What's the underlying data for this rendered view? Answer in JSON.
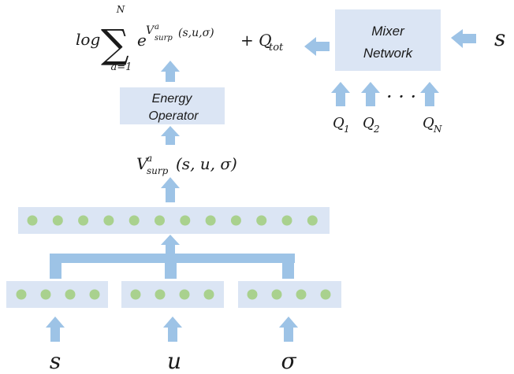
{
  "formula": {
    "log": "log",
    "sum_symbol": "∑",
    "sum_upper": "N",
    "sum_lower": "a=1",
    "exp_base": "e",
    "exp_v": "V",
    "exp_sup": "a",
    "exp_sub": "surp",
    "exp_args": "(s,u,σ)",
    "plus_q": "+ Q",
    "q_sub": "tot"
  },
  "mixer": {
    "line1": "Mixer",
    "line2": "Network"
  },
  "mixer_input": "s",
  "q_inputs": [
    {
      "main": "Q",
      "sub": "1"
    },
    {
      "main": "Q",
      "sub": "2"
    },
    {
      "main": "Q",
      "sub": "N"
    }
  ],
  "q_ellipsis": "· · ·",
  "energy": {
    "line1": "Energy",
    "line2": "Operator"
  },
  "vsurp": {
    "main": "V",
    "sup": "a",
    "sub": "surp",
    "args": "(s, u, σ)"
  },
  "hidden_layer": {
    "units": 12
  },
  "input_groups": [
    {
      "symbol": "s",
      "units": 4
    },
    {
      "symbol": "u",
      "units": 4
    },
    {
      "symbol": "σ",
      "units": 4
    }
  ]
}
